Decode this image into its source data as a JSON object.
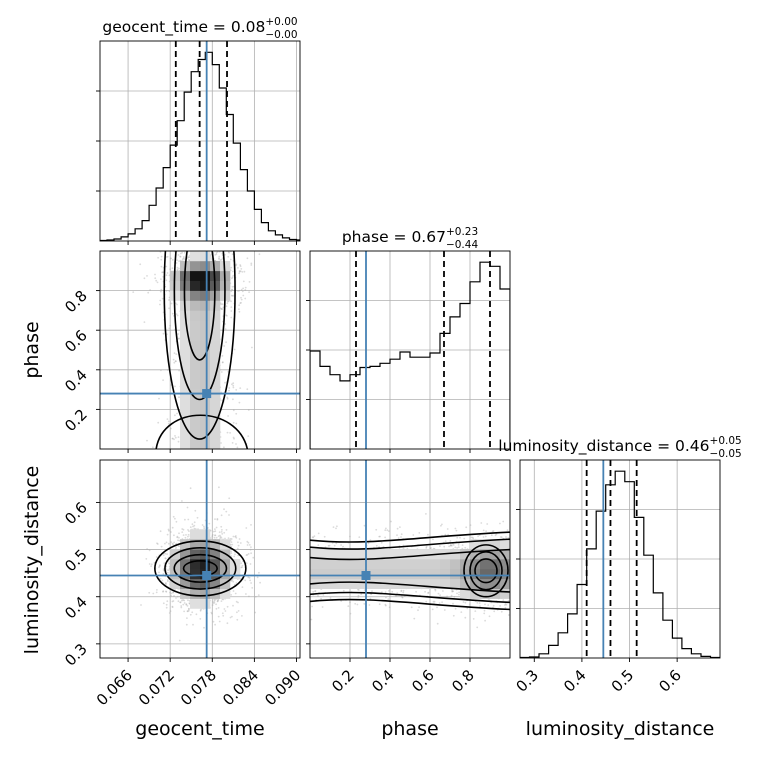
{
  "chart_data": {
    "type": "corner",
    "parameters": [
      "geocent_time",
      "phase",
      "luminosity_distance"
    ],
    "axis_labels": {
      "geocent_time": "geocent_time",
      "phase": "phase",
      "luminosity_distance": "luminosity_distance"
    },
    "ranges": {
      "geocent_time": [
        0.062,
        0.0905
      ],
      "phase": [
        0.0,
        1.0
      ],
      "luminosity_distance": [
        0.27,
        0.69
      ]
    },
    "ticks": {
      "geocent_time": [
        0.066,
        0.072,
        0.078,
        0.084,
        0.09
      ],
      "phase": [
        0.2,
        0.4,
        0.6,
        0.8
      ],
      "luminosity_distance": [
        0.3,
        0.4,
        0.5,
        0.6
      ]
    },
    "tick_labels": {
      "geocent_time": [
        "0.066",
        "0.072",
        "0.078",
        "0.084",
        "0.090"
      ],
      "phase": [
        "0.2",
        "0.4",
        "0.6",
        "0.8"
      ],
      "luminosity_distance": [
        "0.3",
        "0.4",
        "0.5",
        "0.6"
      ]
    },
    "truths": {
      "geocent_time": 0.0772,
      "phase": 0.28,
      "luminosity_distance": 0.445
    },
    "titles": [
      {
        "param": "geocent_time",
        "name": "geocent_time",
        "median": "0.08",
        "plus": "+0.00",
        "minus": "−0.00"
      },
      {
        "param": "phase",
        "name": "phase",
        "median": "0.67",
        "plus": "+0.23",
        "minus": "−0.44"
      },
      {
        "param": "luminosity_distance",
        "name": "luminosity_distance",
        "median": "0.46",
        "plus": "+0.05",
        "minus": "−0.05"
      }
    ],
    "quantiles": {
      "geocent_time": [
        0.0728,
        0.0762,
        0.0801
      ],
      "phase": [
        0.23,
        0.67,
        0.9
      ],
      "luminosity_distance": [
        0.41,
        0.46,
        0.515
      ]
    },
    "histograms": {
      "geocent_time": {
        "bins": [
          0.062,
          0.063,
          0.064,
          0.065,
          0.066,
          0.067,
          0.068,
          0.069,
          0.07,
          0.071,
          0.072,
          0.073,
          0.074,
          0.075,
          0.076,
          0.077,
          0.078,
          0.079,
          0.08,
          0.081,
          0.082,
          0.083,
          0.084,
          0.085,
          0.086,
          0.087,
          0.088,
          0.089,
          0.09,
          0.0905
        ],
        "counts": [
          0.5,
          1,
          2,
          4,
          7,
          12,
          20,
          35,
          52,
          72,
          94,
          118,
          146,
          166,
          178,
          185,
          173,
          150,
          124,
          96,
          70,
          49,
          31,
          18,
          10,
          6,
          3,
          1.5,
          1
        ]
      },
      "phase": {
        "bins": [
          0.0,
          0.05,
          0.1,
          0.15,
          0.2,
          0.25,
          0.3,
          0.35,
          0.4,
          0.45,
          0.5,
          0.55,
          0.6,
          0.65,
          0.7,
          0.75,
          0.8,
          0.85,
          0.9,
          0.95,
          1.0
        ],
        "counts": [
          95,
          80,
          72,
          66,
          72,
          79,
          80,
          83,
          87,
          94,
          89,
          89,
          93,
          112,
          128,
          141,
          162,
          181,
          177,
          155
        ]
      },
      "luminosity_distance": {
        "bins": [
          0.27,
          0.29,
          0.31,
          0.33,
          0.35,
          0.37,
          0.39,
          0.41,
          0.43,
          0.45,
          0.47,
          0.49,
          0.51,
          0.53,
          0.55,
          0.57,
          0.59,
          0.61,
          0.63,
          0.65,
          0.67,
          0.69
        ],
        "counts": [
          0.5,
          1,
          4,
          12,
          24,
          42,
          70,
          104,
          140,
          165,
          178,
          168,
          134,
          98,
          62,
          36,
          19,
          9,
          4,
          1.5,
          0.5
        ]
      }
    },
    "grid": true,
    "colors": {
      "truth": "#4682b4",
      "contour": "#000000",
      "samples": "#b0b0b0",
      "grid": "#b0b0b0"
    }
  }
}
